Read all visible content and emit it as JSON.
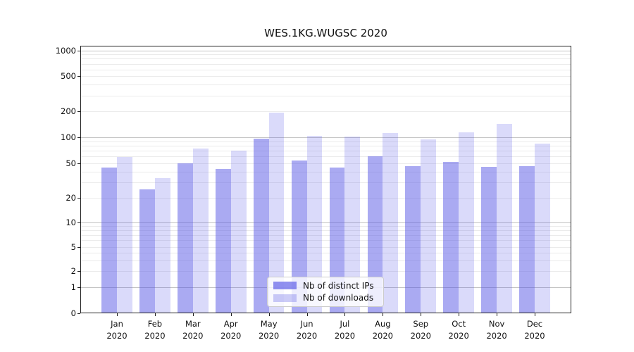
{
  "chart_data": {
    "type": "bar",
    "title": "WES.1KG.WUGSC 2020",
    "categories": [
      "Jan 2020",
      "Feb 2020",
      "Mar 2020",
      "Apr 2020",
      "May 2020",
      "Jun 2020",
      "Jul 2020",
      "Aug 2020",
      "Sep 2020",
      "Oct 2020",
      "Nov 2020",
      "Dec 2020"
    ],
    "series": [
      {
        "name": "Nb of distinct IPs",
        "color": "#5555e6",
        "fill_alpha": 0.5,
        "values": [
          45,
          25,
          50,
          43,
          96,
          54,
          45,
          61,
          47,
          52,
          46,
          47
        ]
      },
      {
        "name": "Nb of downloads",
        "color": "#5555e6",
        "fill_alpha": 0.22,
        "values": [
          60,
          34,
          74,
          70,
          195,
          104,
          101,
          112,
          94,
          114,
          142,
          85
        ]
      }
    ],
    "xlabel": "",
    "ylabel": "",
    "yscale": "log above 1, linear 0-1 (symlog)",
    "ylim": [
      0,
      1130
    ],
    "ytick_labels": [
      "1000",
      "500",
      "200",
      "100",
      "50",
      "20",
      "10",
      "5",
      "2",
      "1",
      "0"
    ],
    "grid": {
      "on": true,
      "major_values": [
        1,
        10,
        100,
        1000
      ]
    },
    "legend": {
      "position": "lower center",
      "frame": true
    },
    "colors": {
      "background": "#ffffff",
      "grid_major": "#c3c3c3",
      "grid_minor": "#ebebeb",
      "spine": "#222222",
      "text": "#111111"
    }
  }
}
